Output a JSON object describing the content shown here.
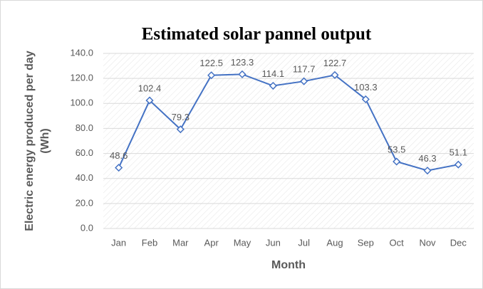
{
  "chart_data": {
    "type": "line",
    "title": "Estimated solar pannel output",
    "xlabel": "Month",
    "ylabel": [
      "Electric energy produced per day",
      "(Wh)"
    ],
    "categories": [
      "Jan",
      "Feb",
      "Mar",
      "Apr",
      "May",
      "Jun",
      "Jul",
      "Aug",
      "Sep",
      "Oct",
      "Nov",
      "Dec"
    ],
    "values": [
      48.6,
      102.4,
      79.3,
      122.5,
      123.3,
      114.1,
      117.7,
      122.7,
      103.3,
      53.5,
      46.3,
      51.1
    ],
    "color": "#4472c4",
    "ylim": [
      0,
      140
    ],
    "yticks": [
      {
        "value": 0,
        "label": "0.0"
      },
      {
        "value": 20,
        "label": "20.0"
      },
      {
        "value": 40,
        "label": "40.0"
      },
      {
        "value": 60,
        "label": "60.0"
      },
      {
        "value": 80,
        "label": "80.0"
      },
      {
        "value": 100,
        "label": "100.0"
      },
      {
        "value": 120,
        "label": "120.0"
      },
      {
        "value": 140,
        "label": "140.0"
      }
    ],
    "grid": true
  }
}
